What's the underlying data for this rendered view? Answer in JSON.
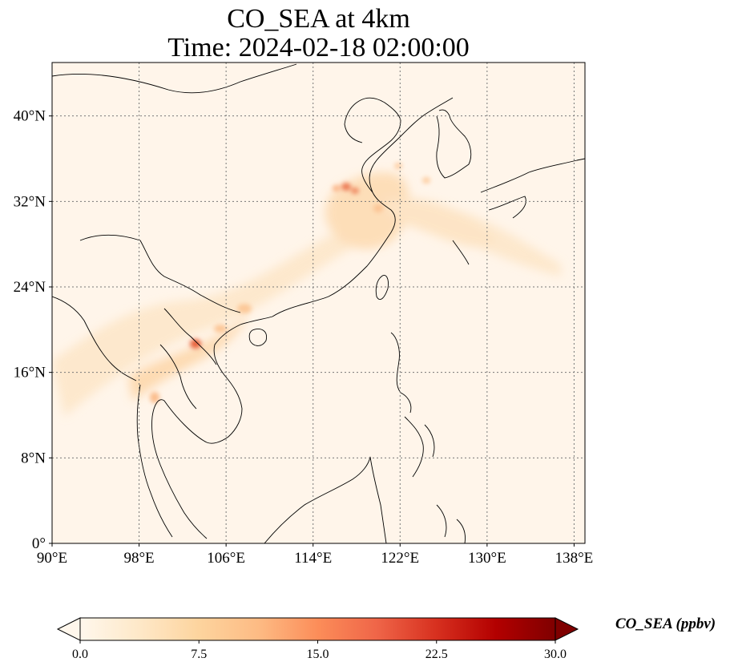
{
  "title": {
    "line1": "CO_SEA at 4km",
    "line2": "Time: 2024-02-18 02:00:00"
  },
  "map": {
    "lon_range": [
      90,
      139
    ],
    "lat_range": [
      0,
      45
    ],
    "x_ticks": [
      "90°E",
      "98°E",
      "106°E",
      "114°E",
      "122°E",
      "130°E",
      "138°E"
    ],
    "x_tick_values": [
      90,
      98,
      106,
      114,
      122,
      130,
      138
    ],
    "y_ticks": [
      "0°",
      "8°N",
      "16°N",
      "24°N",
      "32°N",
      "40°N"
    ],
    "y_tick_values": [
      0,
      8,
      16,
      24,
      32,
      40
    ],
    "gridlines": "dotted",
    "background_color": "#fff5ea"
  },
  "colorbar": {
    "label": "CO_SEA (ppbv)",
    "ticks": [
      "0.0",
      "7.5",
      "15.0",
      "22.5",
      "30.0"
    ],
    "range": [
      0,
      30
    ],
    "extend": "both",
    "colormap": "OrRd",
    "colors": [
      "#fff7ec",
      "#fee8c8",
      "#fdd49e",
      "#fdbb84",
      "#fc8d59",
      "#ef6548",
      "#d7301f",
      "#b30000",
      "#7f0000"
    ]
  }
}
